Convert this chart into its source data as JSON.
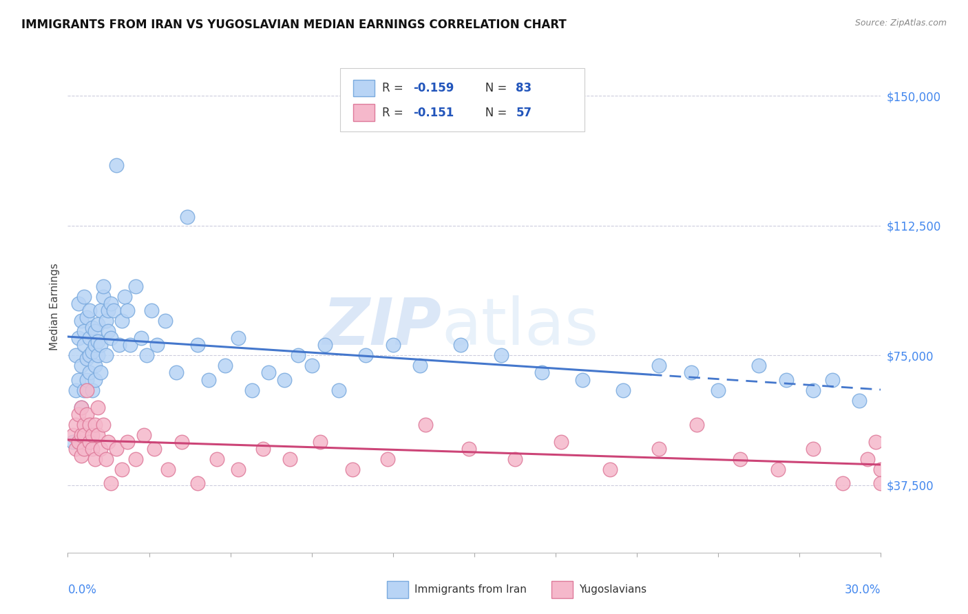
{
  "title": "IMMIGRANTS FROM IRAN VS YUGOSLAVIAN MEDIAN EARNINGS CORRELATION CHART",
  "source_text": "Source: ZipAtlas.com",
  "ylabel": "Median Earnings",
  "ytick_labels": [
    "$37,500",
    "$75,000",
    "$112,500",
    "$150,000"
  ],
  "ytick_values": [
    37500,
    75000,
    112500,
    150000
  ],
  "ymin": 18000,
  "ymax": 160000,
  "xmin": 0.0,
  "xmax": 0.3,
  "legend_iran_r": "-0.159",
  "legend_iran_n": "83",
  "legend_yugo_r": "-0.151",
  "legend_yugo_n": "57",
  "iran_color": "#b8d4f5",
  "iran_edge_color": "#7aaade",
  "yugo_color": "#f5b8cb",
  "yugo_edge_color": "#de7a9a",
  "iran_line_color": "#4477cc",
  "yugo_line_color": "#cc4477",
  "label_color": "#4488ee",
  "iran_points_x": [
    0.002,
    0.003,
    0.003,
    0.004,
    0.004,
    0.004,
    0.005,
    0.005,
    0.005,
    0.006,
    0.006,
    0.006,
    0.006,
    0.007,
    0.007,
    0.007,
    0.008,
    0.008,
    0.008,
    0.008,
    0.009,
    0.009,
    0.009,
    0.01,
    0.01,
    0.01,
    0.01,
    0.011,
    0.011,
    0.011,
    0.012,
    0.012,
    0.012,
    0.013,
    0.013,
    0.014,
    0.014,
    0.015,
    0.015,
    0.016,
    0.016,
    0.017,
    0.018,
    0.019,
    0.02,
    0.021,
    0.022,
    0.023,
    0.025,
    0.027,
    0.029,
    0.031,
    0.033,
    0.036,
    0.04,
    0.044,
    0.048,
    0.052,
    0.058,
    0.063,
    0.068,
    0.074,
    0.08,
    0.085,
    0.09,
    0.095,
    0.1,
    0.11,
    0.12,
    0.13,
    0.145,
    0.16,
    0.175,
    0.19,
    0.205,
    0.218,
    0.23,
    0.24,
    0.255,
    0.265,
    0.275,
    0.282,
    0.292
  ],
  "iran_points_y": [
    50000,
    75000,
    65000,
    80000,
    90000,
    68000,
    72000,
    85000,
    60000,
    78000,
    65000,
    92000,
    82000,
    86000,
    74000,
    68000,
    80000,
    75000,
    70000,
    88000,
    76000,
    83000,
    65000,
    78000,
    82000,
    72000,
    68000,
    79000,
    84000,
    75000,
    88000,
    78000,
    70000,
    92000,
    95000,
    85000,
    75000,
    88000,
    82000,
    90000,
    80000,
    88000,
    130000,
    78000,
    85000,
    92000,
    88000,
    78000,
    95000,
    80000,
    75000,
    88000,
    78000,
    85000,
    70000,
    115000,
    78000,
    68000,
    72000,
    80000,
    65000,
    70000,
    68000,
    75000,
    72000,
    78000,
    65000,
    75000,
    78000,
    72000,
    78000,
    75000,
    70000,
    68000,
    65000,
    72000,
    70000,
    65000,
    72000,
    68000,
    65000,
    68000,
    62000
  ],
  "yugo_points_x": [
    0.002,
    0.003,
    0.003,
    0.004,
    0.004,
    0.005,
    0.005,
    0.005,
    0.006,
    0.006,
    0.006,
    0.007,
    0.007,
    0.008,
    0.008,
    0.009,
    0.009,
    0.01,
    0.01,
    0.011,
    0.011,
    0.012,
    0.013,
    0.014,
    0.015,
    0.016,
    0.018,
    0.02,
    0.022,
    0.025,
    0.028,
    0.032,
    0.037,
    0.042,
    0.048,
    0.055,
    0.063,
    0.072,
    0.082,
    0.093,
    0.105,
    0.118,
    0.132,
    0.148,
    0.165,
    0.182,
    0.2,
    0.218,
    0.232,
    0.248,
    0.262,
    0.275,
    0.286,
    0.295,
    0.298,
    0.3,
    0.3
  ],
  "yugo_points_y": [
    52000,
    55000,
    48000,
    58000,
    50000,
    52000,
    60000,
    46000,
    55000,
    48000,
    52000,
    65000,
    58000,
    50000,
    55000,
    48000,
    52000,
    55000,
    45000,
    60000,
    52000,
    48000,
    55000,
    45000,
    50000,
    38000,
    48000,
    42000,
    50000,
    45000,
    52000,
    48000,
    42000,
    50000,
    38000,
    45000,
    42000,
    48000,
    45000,
    50000,
    42000,
    45000,
    55000,
    48000,
    45000,
    50000,
    42000,
    48000,
    55000,
    45000,
    42000,
    48000,
    38000,
    45000,
    50000,
    42000,
    38000
  ]
}
